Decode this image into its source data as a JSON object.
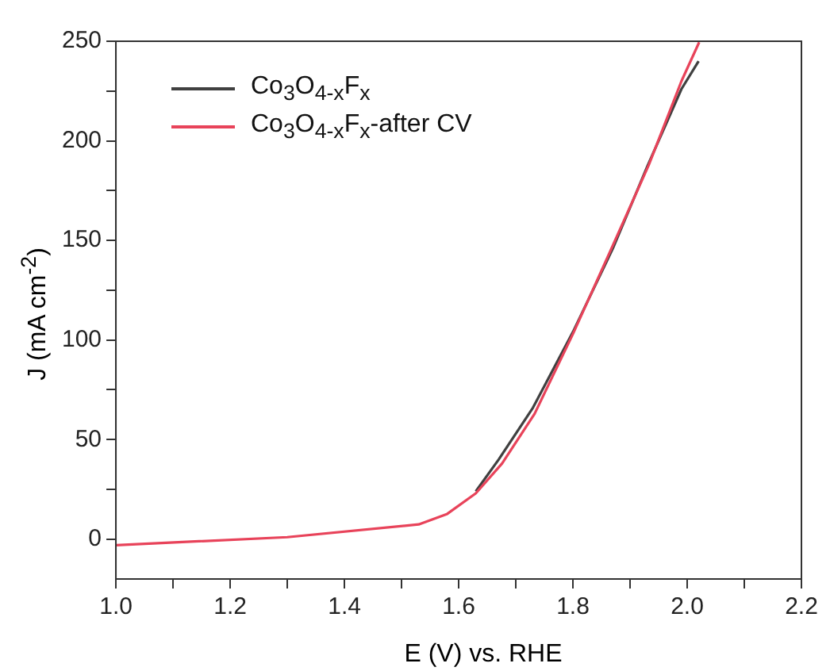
{
  "chart_data": {
    "type": "line",
    "xlabel": "E (V) vs. RHE",
    "ylabel": "J (mA cm$^{-2}$)",
    "xlim": [
      1.0,
      2.2
    ],
    "xticks": [
      {
        "value": 1.0,
        "label": "1.0"
      },
      {
        "value": 1.1,
        "label": null
      },
      1.2,
      {
        "value": 1.3,
        "label": null
      },
      1.4,
      {
        "value": 1.5,
        "label": null
      },
      1.6,
      {
        "value": 1.7,
        "label": null
      },
      1.8,
      {
        "value": 1.9,
        "label": null
      },
      {
        "value": 2.0,
        "label": "2.0"
      },
      {
        "value": 2.1,
        "label": null
      },
      2.2
    ],
    "ylim": [
      -20,
      250
    ],
    "yticks": [
      0,
      {
        "value": 25,
        "label": null
      },
      50,
      {
        "value": 75,
        "label": null
      },
      100,
      {
        "value": 125,
        "label": null
      },
      150,
      {
        "value": 175,
        "label": null
      },
      200,
      {
        "value": 225,
        "label": null
      },
      250
    ],
    "legend": "top left",
    "marker": "none",
    "line_style": "solid",
    "grid": false,
    "series": [
      {
        "name": "Co$_{3}$O$_{4-x}$F$_{x}$",
        "color": "#404040",
        "x": [
          1.63,
          1.67,
          1.73,
          1.8,
          1.87,
          1.93,
          1.99,
          2.02
        ],
        "values": [
          24,
          40,
          66,
          104,
          146,
          187,
          226,
          240
        ]
      },
      {
        "name": "Co$_{3}$O$_{4-x}$F$_{x}$-after CV",
        "color": "#e8435a",
        "x": [
          1.0,
          1.3,
          1.53,
          1.58,
          1.63,
          1.676,
          1.733,
          1.8,
          1.866,
          1.933,
          1.99,
          2.021
        ],
        "values": [
          -3,
          1,
          7.4,
          12.7,
          23,
          38,
          63,
          103,
          145,
          188,
          230,
          249.5
        ]
      }
    ]
  }
}
